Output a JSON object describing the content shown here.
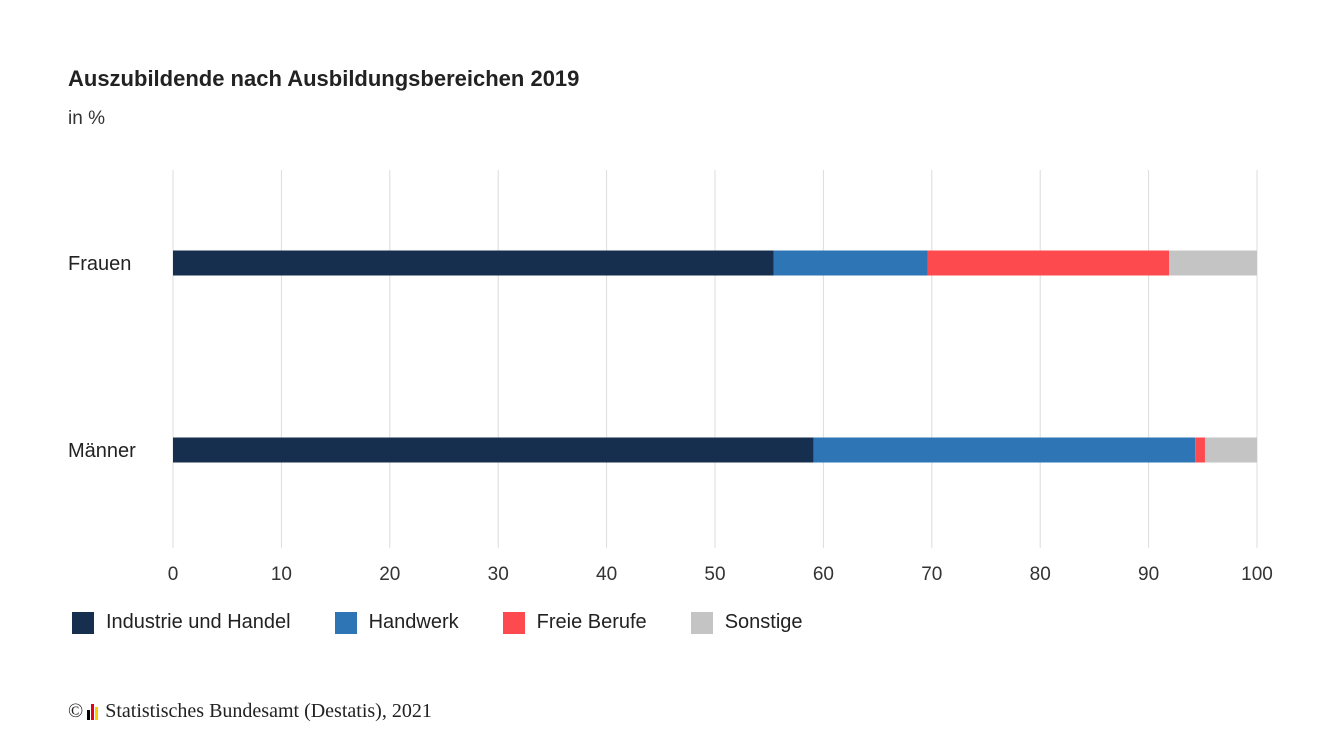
{
  "chart_data": {
    "type": "bar",
    "orientation": "horizontal",
    "stacked": true,
    "title": "Auszubildende nach Ausbildungsbereichen 2019",
    "subtitle": "in %",
    "categories": [
      "Frauen",
      "Männer"
    ],
    "series": [
      {
        "name": "Industrie und Handel",
        "color": "#172f4f",
        "values": [
          55.4,
          59.1
        ]
      },
      {
        "name": "Handwerk",
        "color": "#2e75b6",
        "values": [
          14.2,
          35.2
        ]
      },
      {
        "name": "Freie Berufe",
        "color": "#fd4a4f",
        "values": [
          22.3,
          0.9
        ]
      },
      {
        "name": "Sonstige",
        "color": "#c4c4c4",
        "values": [
          8.1,
          4.8
        ]
      }
    ],
    "x_ticks": [
      "0",
      "10",
      "20",
      "30",
      "40",
      "50",
      "60",
      "70",
      "80",
      "90",
      "100"
    ],
    "xlim": [
      0,
      100
    ],
    "grid": true,
    "legend_position": "bottom-left"
  },
  "footer": {
    "copyright_symbol": "©",
    "source": "Statistisches Bundesamt (Destatis), 2021",
    "logo_colors": [
      "#000000",
      "#e3001b",
      "#ffcc00"
    ]
  }
}
